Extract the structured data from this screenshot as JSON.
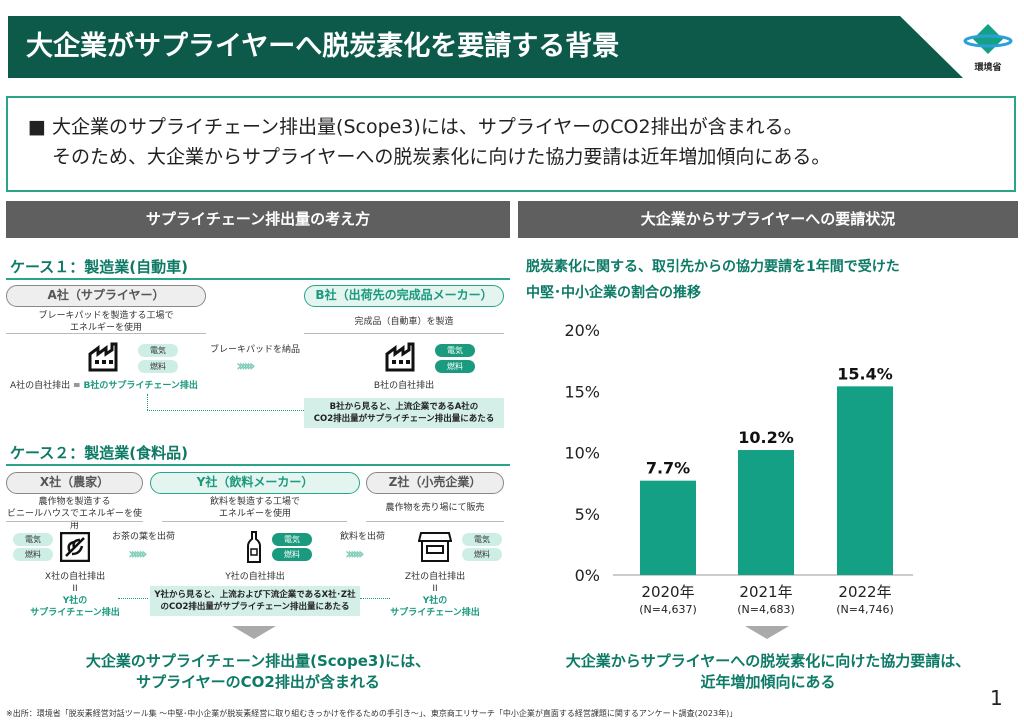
{
  "header": {
    "title": "大企業がサプライヤーへ脱炭素化を要請する背景",
    "logo_text": "環境省"
  },
  "summary": {
    "line1": "■ 大企業のサプライチェーン排出量(Scope3)には、サプライヤーのCO2排出が含まれる。",
    "line2": "そのため、大企業からサプライヤーへの脱炭素化に向けた協力要請は近年増加傾向にある。"
  },
  "left": {
    "heading": "サプライチェーン排出量の考え方",
    "case1": {
      "title": "ケース１：製造業(自動車)",
      "a_name": "A社（サプライヤー）",
      "a_desc1": "ブレーキパッドを製造する工場で",
      "a_desc2": "エネルギーを使用",
      "b_name": "B社（出荷先の完成品メーカー）",
      "b_desc": "完成品（自動車）を製造",
      "flow": "ブレーキパッドを納品",
      "elec": "電気",
      "fuel": "燃料",
      "a_emit": "A社の自社排出",
      "eq": "=",
      "a_emit2": "B社のサプライチェーン排出",
      "b_emit": "B社の自社排出",
      "note1": "B社から見ると、上流企業であるA社の",
      "note2": "CO2排出量がサプライチェーン排出量にあたる"
    },
    "case2": {
      "title": "ケース２：製造業(食料品)",
      "x_name": "X社（農家）",
      "x_desc1": "農作物を製造する",
      "x_desc2": "ビニールハウスでエネルギーを使用",
      "y_name": "Y社（飲料メーカー）",
      "y_desc1": "飲料を製造する工場で",
      "y_desc2": "エネルギーを使用",
      "z_name": "Z社（小売企業）",
      "z_desc": "農作物を売り場にて販売",
      "flow1": "お茶の葉を出荷",
      "flow2": "飲料を出荷",
      "elec": "電気",
      "fuel": "燃料",
      "x_emit": "X社の自社排出",
      "y_emit": "Y社の自社排出",
      "z_emit": "Z社の自社排出",
      "eq": "II",
      "sc1": "Y社の",
      "sc2": "サプライチェーン排出",
      "note1": "Y社から見ると、上流および下流企業であるX社･Z社",
      "note2": "のCO2排出量がサプライチェーン排出量にあたる"
    },
    "conclusion1": "大企業のサプライチェーン排出量(Scope3)には、",
    "conclusion2": "サプライヤーのCO2排出が含まれる"
  },
  "right": {
    "heading": "大企業からサプライヤーへの要請状況",
    "chart_title1": "脱炭素化に関する、取引先からの協力要請を1年間で受けた",
    "chart_title2": "中堅･中小企業の割合の推移",
    "conclusion1": "大企業からサプライヤーへの脱炭素化に向けた協力要請は、",
    "conclusion2": "近年増加傾向にある"
  },
  "chart_data": {
    "type": "bar",
    "categories": [
      "2020年",
      "2021年",
      "2022年"
    ],
    "sublabels": [
      "(N=4,637)",
      "(N=4,683)",
      "(N=4,746)"
    ],
    "values": [
      7.7,
      10.2,
      15.4
    ],
    "data_labels": [
      "7.7%",
      "10.2%",
      "15.4%"
    ],
    "yticks": [
      "0%",
      "5%",
      "10%",
      "15%",
      "20%"
    ],
    "ylim": [
      0,
      20
    ],
    "title": "脱炭素化に関する、取引先からの協力要請を1年間で受けた中堅･中小企業の割合の推移",
    "bar_color": "#13a085"
  },
  "footer": {
    "source": "※出所：環境省「脱炭素経営対話ツール集 ～中堅･中小企業が脱炭素経営に取り組むきっかけを作るための手引き～」、東京商工リサーチ「中小企業が直面する経営課題に関するアンケート調査(2023年)」",
    "page": "1"
  }
}
